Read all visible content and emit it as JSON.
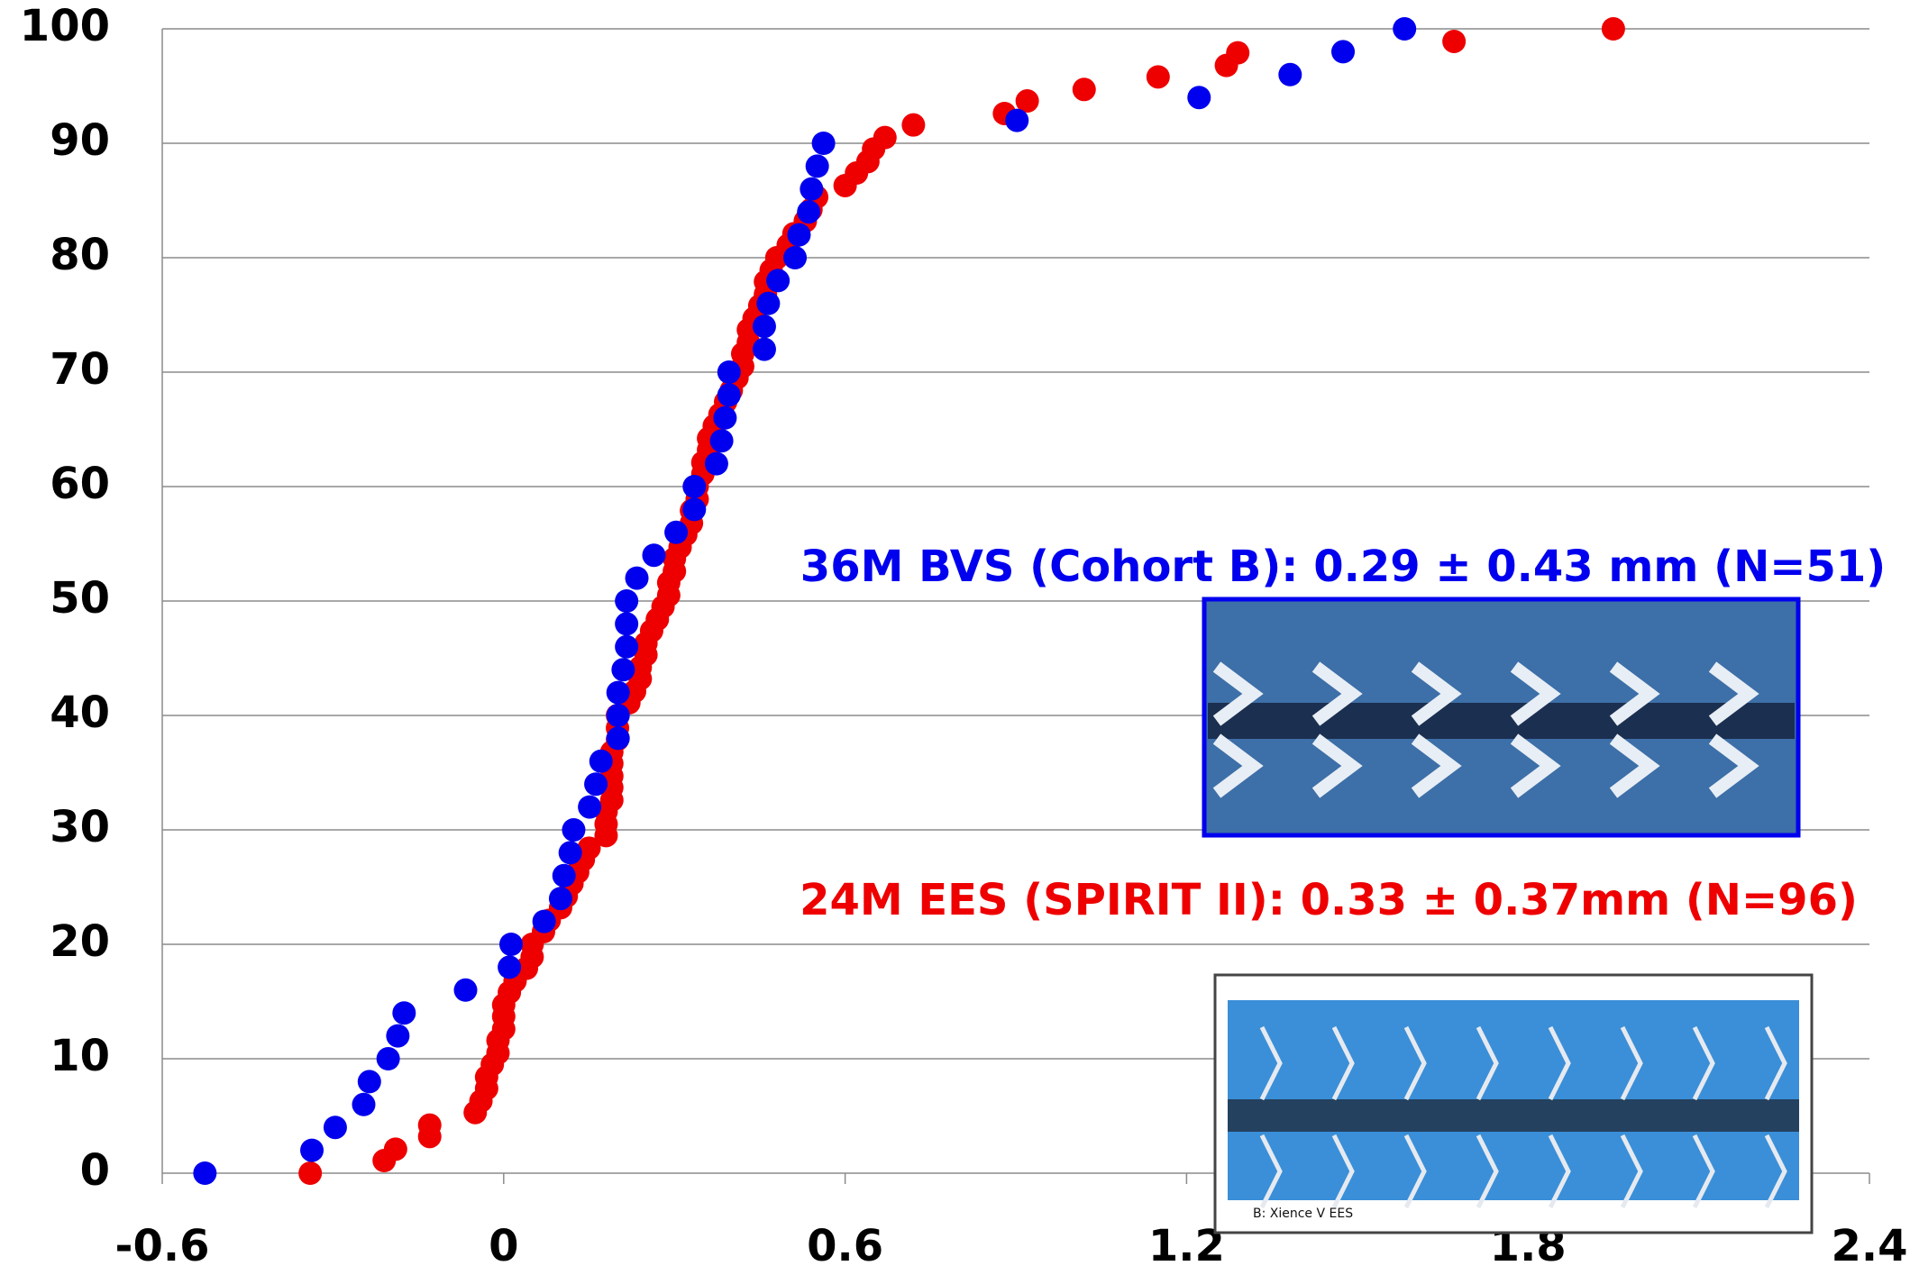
{
  "chart_data": {
    "type": "scatter",
    "annotations": [
      "36M BVS (Cohort B): 0.29 ± 0.43 mm (N=51)",
      "24M EES (SPIRIT II): 0.33 ± 0.37mm (N=96)"
    ],
    "image_caption": "B: Xience V EES",
    "xlim": [
      -0.6,
      2.4
    ],
    "xticks": [
      -0.6,
      0,
      0.6,
      1.2,
      1.8,
      2.4
    ],
    "ylim": [
      0,
      100
    ],
    "yticks": [
      0,
      10,
      20,
      30,
      40,
      50,
      60,
      70,
      80,
      90,
      100
    ],
    "grid": true,
    "series": [
      {
        "color": "#0000ee",
        "x": [
          -0.525,
          -0.337,
          -0.296,
          -0.246,
          -0.236,
          -0.203,
          -0.186,
          -0.175,
          -0.067,
          0.01,
          0.013,
          0.071,
          0.1,
          0.106,
          0.117,
          0.123,
          0.151,
          0.162,
          0.171,
          0.201,
          0.201,
          0.201,
          0.21,
          0.216,
          0.216,
          0.216,
          0.234,
          0.264,
          0.303,
          0.335,
          0.335,
          0.374,
          0.383,
          0.389,
          0.396,
          0.396,
          0.458,
          0.458,
          0.465,
          0.482,
          0.512,
          0.519,
          0.536,
          0.541,
          0.551,
          0.562,
          0.902,
          1.222,
          1.382,
          1.475,
          1.583
        ],
        "values": [
          0,
          2,
          4,
          6,
          8,
          10,
          12,
          14,
          16,
          18,
          20,
          22,
          24,
          26,
          28,
          30,
          32,
          34,
          36,
          38,
          40,
          42,
          44,
          46,
          48,
          50,
          52,
          54,
          56,
          58,
          60,
          62,
          64,
          66,
          68,
          70,
          72,
          74,
          76,
          78,
          80,
          82,
          84,
          86,
          88,
          90,
          92,
          94,
          96,
          98,
          100
        ]
      },
      {
        "color": "#ee0000",
        "x": [
          -0.34,
          -0.21,
          -0.19,
          -0.13,
          -0.13,
          -0.05,
          -0.04,
          -0.03,
          -0.03,
          -0.02,
          -0.01,
          -0.01,
          0.0,
          0.0,
          0.0,
          0.01,
          0.02,
          0.04,
          0.05,
          0.05,
          0.07,
          0.08,
          0.1,
          0.11,
          0.12,
          0.13,
          0.14,
          0.15,
          0.18,
          0.18,
          0.18,
          0.19,
          0.19,
          0.19,
          0.19,
          0.19,
          0.2,
          0.2,
          0.2,
          0.22,
          0.23,
          0.24,
          0.24,
          0.25,
          0.25,
          0.26,
          0.27,
          0.28,
          0.29,
          0.29,
          0.3,
          0.3,
          0.31,
          0.32,
          0.33,
          0.33,
          0.34,
          0.34,
          0.35,
          0.35,
          0.36,
          0.36,
          0.37,
          0.38,
          0.39,
          0.4,
          0.41,
          0.42,
          0.42,
          0.43,
          0.43,
          0.44,
          0.45,
          0.46,
          0.46,
          0.47,
          0.48,
          0.5,
          0.51,
          0.53,
          0.54,
          0.55,
          0.6,
          0.62,
          0.64,
          0.65,
          0.67,
          0.72,
          0.88,
          0.92,
          1.02,
          1.15,
          1.27,
          1.29,
          1.67,
          1.95
        ],
        "values": [
          0,
          1.1,
          2.1,
          3.2,
          4.2,
          5.3,
          6.3,
          7.4,
          8.4,
          9.5,
          10.5,
          11.6,
          12.6,
          13.7,
          14.7,
          15.8,
          16.8,
          17.9,
          18.9,
          20.0,
          21.1,
          22.1,
          23.2,
          24.2,
          25.3,
          26.3,
          27.4,
          28.4,
          29.5,
          30.5,
          31.6,
          32.6,
          33.7,
          34.7,
          35.8,
          36.8,
          37.9,
          38.9,
          40.0,
          41.1,
          42.1,
          43.2,
          44.2,
          45.3,
          46.3,
          47.4,
          48.4,
          49.5,
          50.5,
          51.6,
          52.6,
          53.7,
          54.7,
          55.8,
          56.8,
          57.9,
          58.9,
          60.0,
          61.1,
          62.1,
          63.2,
          64.2,
          65.3,
          66.3,
          67.4,
          68.4,
          69.5,
          70.5,
          71.6,
          72.6,
          73.7,
          74.7,
          75.8,
          76.8,
          77.9,
          78.9,
          80.0,
          81.1,
          82.1,
          83.2,
          84.2,
          85.3,
          86.3,
          87.4,
          88.4,
          89.5,
          90.5,
          91.6,
          92.6,
          93.7,
          94.7,
          95.8,
          96.8,
          97.9,
          98.9,
          100
        ]
      }
    ]
  }
}
